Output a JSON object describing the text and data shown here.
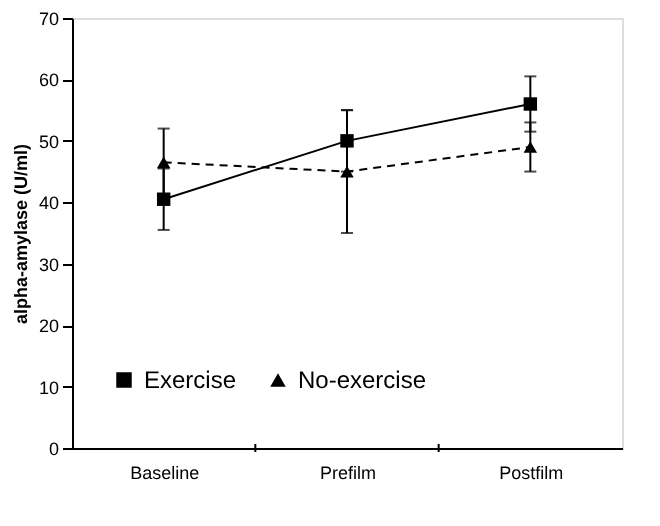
{
  "chart_data": {
    "type": "line",
    "ylabel": "alpha-amylase (U/ml)",
    "categories": [
      "Baseline",
      "Prefilm",
      "Postfilm"
    ],
    "series": [
      {
        "name": "Exercise",
        "color": "#000000",
        "marker": "square",
        "line_style": "solid",
        "values": [
          40.5,
          50,
          56
        ],
        "errors": [
          5,
          5,
          4.5
        ]
      },
      {
        "name": "No-exercise",
        "color": "#000000",
        "marker": "triangle",
        "line_style": "dashed",
        "values": [
          46.5,
          45,
          49
        ],
        "errors": [
          5.5,
          10,
          4
        ]
      }
    ],
    "ylim": [
      0,
      70
    ],
    "yticks": [
      0,
      10,
      20,
      30,
      40,
      50,
      60,
      70
    ],
    "grid": false,
    "legend": "bottom"
  }
}
